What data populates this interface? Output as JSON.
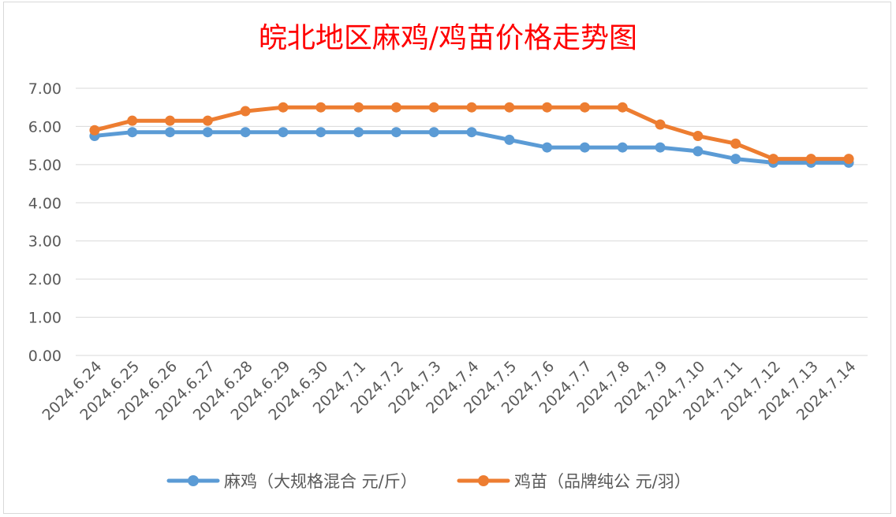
{
  "chart_data": {
    "type": "line",
    "title": "皖北地区麻鸡/鸡苗价格走势图",
    "categories": [
      "2024.6.24",
      "2024.6.25",
      "2024.6.26",
      "2024.6.27",
      "2024.6.28",
      "2024.6.29",
      "2024.6.30",
      "2024.7.1",
      "2024.7.2",
      "2024.7.3",
      "2024.7.4",
      "2024.7.5",
      "2024.7.6",
      "2024.7.7",
      "2024.7.8",
      "2024.7.9",
      "2024.7.10",
      "2024.7.11",
      "2024.7.12",
      "2024.7.13",
      "2024.7.14"
    ],
    "y_ticks": [
      "0.00",
      "1.00",
      "2.00",
      "3.00",
      "4.00",
      "5.00",
      "6.00",
      "7.00"
    ],
    "ylim": [
      0,
      7
    ],
    "grid": true,
    "legend_position": "bottom",
    "series": [
      {
        "name": "麻鸡（大规格混合 元/斤）",
        "color": "#5b9bd5",
        "values": [
          5.75,
          5.85,
          5.85,
          5.85,
          5.85,
          5.85,
          5.85,
          5.85,
          5.85,
          5.85,
          5.85,
          5.65,
          5.45,
          5.45,
          5.45,
          5.45,
          5.35,
          5.15,
          5.05,
          5.05,
          5.05
        ]
      },
      {
        "name": "鸡苗（品牌纯公 元/羽）",
        "color": "#ed7d31",
        "values": [
          5.9,
          6.15,
          6.15,
          6.15,
          6.4,
          6.5,
          6.5,
          6.5,
          6.5,
          6.5,
          6.5,
          6.5,
          6.5,
          6.5,
          6.5,
          6.05,
          5.75,
          5.55,
          5.15,
          5.15,
          5.15
        ]
      }
    ],
    "title_color": "#ff0000"
  }
}
